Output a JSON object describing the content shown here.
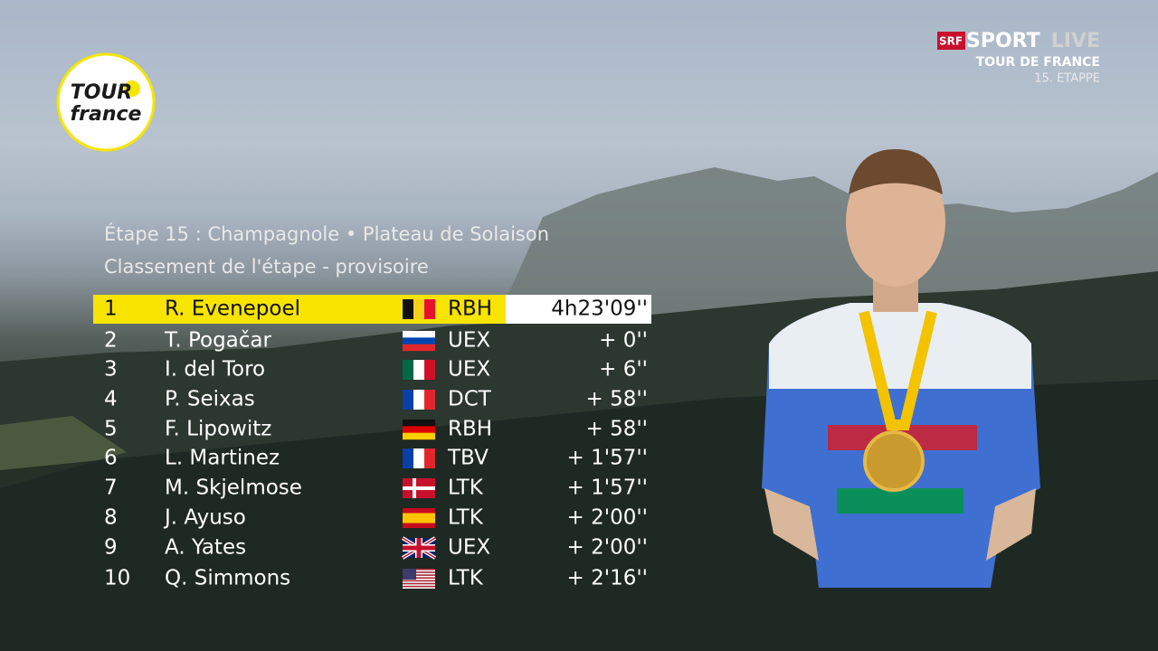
{
  "logo": {
    "line1": "TOUR",
    "line2": "france"
  },
  "broadcaster": {
    "brand": "SRF",
    "sport": "SPORT",
    "live": "LIVE",
    "event": "TOUR DE FRANCE",
    "stage": "15. ETAPPE"
  },
  "standings": {
    "title": "Étape 15 : Champagnole • Plateau de Solaison",
    "subtitle": "Classement de l'étape - provisoire",
    "rows": [
      {
        "rank": "1",
        "name": "R. Evenepoel",
        "team": "RBH",
        "time": "4h23'09''"
      },
      {
        "rank": "2",
        "name": "T. Pogačar",
        "team": "UEX",
        "time": "+ 0''"
      },
      {
        "rank": "3",
        "name": "I. del Toro",
        "team": "UEX",
        "time": "+ 6''"
      },
      {
        "rank": "4",
        "name": "P. Seixas",
        "team": "DCT",
        "time": "+ 58''"
      },
      {
        "rank": "5",
        "name": "F. Lipowitz",
        "team": "RBH",
        "time": "+ 58''"
      },
      {
        "rank": "6",
        "name": "L. Martinez",
        "team": "TBV",
        "time": "+ 1'57''"
      },
      {
        "rank": "7",
        "name": "M. Skjelmose",
        "team": "LTK",
        "time": "+ 1'57''"
      },
      {
        "rank": "8",
        "name": "J. Ayuso",
        "team": "LTK",
        "time": "+ 2'00''"
      },
      {
        "rank": "9",
        "name": "A. Yates",
        "team": "UEX",
        "time": "+ 2'00''"
      },
      {
        "rank": "10",
        "name": "Q. Simmons",
        "team": "LTK",
        "time": "+ 2'16''"
      }
    ]
  }
}
